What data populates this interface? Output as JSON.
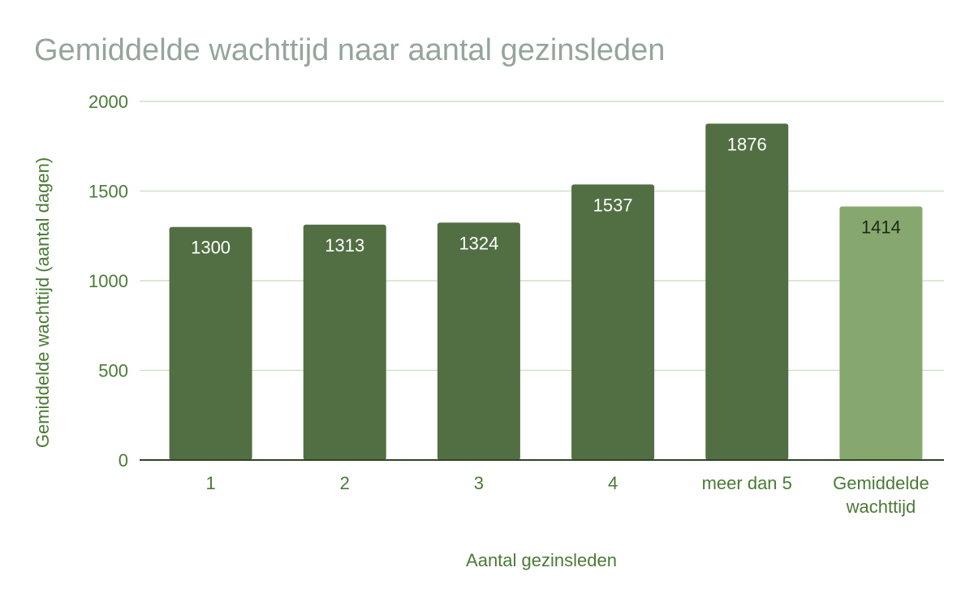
{
  "chart_data": {
    "type": "bar",
    "title": "Gemiddelde wachttijd naar aantal gezinsleden",
    "xlabel": "Aantal gezinsleden",
    "ylabel": "Gemiddelde wachttijd (aantal dagen)",
    "categories": [
      "1",
      "2",
      "3",
      "4",
      "meer dan 5",
      "Gemiddelde wachttijd"
    ],
    "values": [
      1300,
      1313,
      1324,
      1537,
      1876,
      1414
    ],
    "bar_colors": [
      "#526f43",
      "#526f43",
      "#526f43",
      "#526f43",
      "#526f43",
      "#86a86e"
    ],
    "label_colors": [
      "#ffffff",
      "#ffffff",
      "#ffffff",
      "#ffffff",
      "#ffffff",
      "#1f2a18"
    ],
    "ylim": [
      0,
      2000
    ],
    "yticks": [
      0,
      500,
      1000,
      1500,
      2000
    ],
    "grid": true,
    "gridline_color": "#cfe1c5",
    "axis_color": "#2f4426"
  }
}
